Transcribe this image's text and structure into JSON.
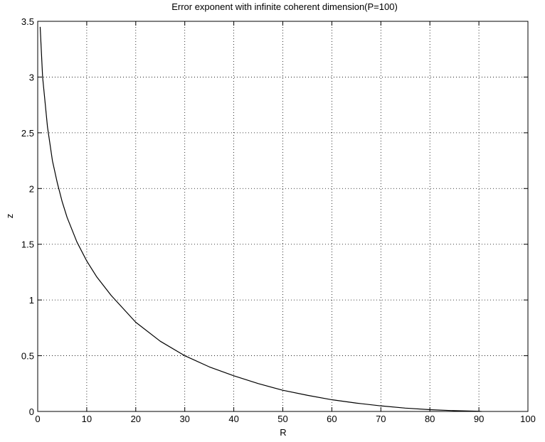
{
  "chart_data": {
    "type": "line",
    "title": "Error exponent with infinite coherent dimension(P=100)",
    "xlabel": "R",
    "ylabel": "z",
    "xlim": [
      0,
      100
    ],
    "ylim": [
      0,
      3.5
    ],
    "xticks": [
      0,
      10,
      20,
      30,
      40,
      50,
      60,
      70,
      80,
      90,
      100
    ],
    "yticks": [
      0,
      0.5,
      1,
      1.5,
      2,
      2.5,
      3,
      3.5
    ],
    "xtick_labels": [
      "0",
      "10",
      "20",
      "30",
      "40",
      "50",
      "60",
      "70",
      "80",
      "90",
      "100"
    ],
    "ytick_labels": [
      "0",
      "0.5",
      "1",
      "1.5",
      "2",
      "2.5",
      "3",
      "3.5"
    ],
    "grid": true,
    "grid_style": "dotted",
    "line_color": "#000000",
    "series": [
      {
        "x": [
          0.5,
          1,
          2,
          3,
          4,
          5,
          6,
          8,
          10,
          12,
          15,
          20,
          25,
          30,
          35,
          40,
          45,
          50,
          55,
          60,
          65,
          70,
          75,
          80,
          85,
          90,
          90.5
        ],
        "y": [
          3.45,
          3.0,
          2.55,
          2.25,
          2.05,
          1.88,
          1.74,
          1.52,
          1.35,
          1.21,
          1.04,
          0.8,
          0.63,
          0.5,
          0.4,
          0.32,
          0.25,
          0.19,
          0.145,
          0.105,
          0.075,
          0.05,
          0.03,
          0.016,
          0.007,
          0.002,
          0.0
        ]
      }
    ]
  }
}
